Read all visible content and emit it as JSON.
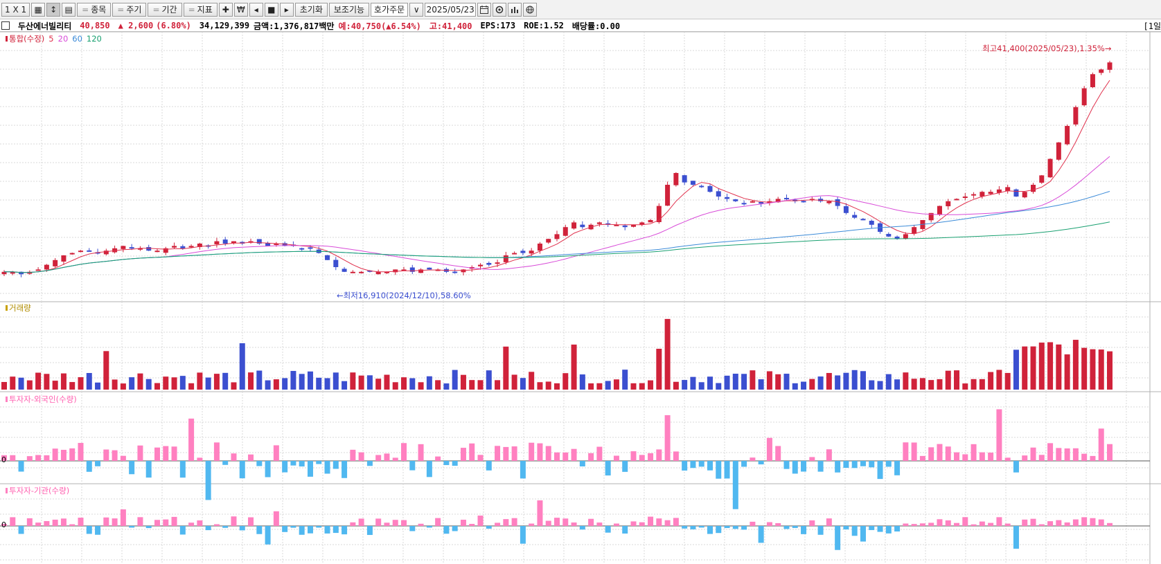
{
  "toolbar": {
    "layout_label": "1 X 1",
    "grid_label": "▦",
    "layout2_label": "↕",
    "layout3_label": "▤",
    "item_label": "종목",
    "cycle_label": "주기",
    "period_label": "기간",
    "indicator_label": "지표",
    "move_label": "✚",
    "won_label": "₩",
    "prev_label": "◂",
    "stop_label": "■",
    "next_label": "▸",
    "reset_label": "초기화",
    "aux_label": "보조기능",
    "order_label": "호가주문",
    "combo_arrow": "∨",
    "date_value": "2025/05/23",
    "calendar_icon": "calendar-icon",
    "settings_icon": "gear-icon"
  },
  "info": {
    "stock_name": "두산에너빌리티",
    "price": "40,850",
    "change": "▲ 2,600",
    "change_pct": "(6.80%)",
    "volume": "34,129,399",
    "amount": "금액:1,376,817백만",
    "expected": "예:40,750(▲6.54%)",
    "high": "고:41,400",
    "eps": "EPS:173",
    "roe": "ROE:1.52",
    "dividend": "배당률:0.00",
    "right_cut": "[1일"
  },
  "panes": {
    "price_title": "통합(수정)",
    "ma_labels": [
      "5",
      "20",
      "60",
      "120"
    ],
    "ma_colors": [
      "#e0304c",
      "#d84ad8",
      "#3a8ad8",
      "#18a070"
    ],
    "high_annotation": "최고41,400(2025/05/23),1.35%→",
    "low_annotation": "←최저16,910(2024/12/10),58.60%",
    "volume_title": "거래량",
    "foreign_title": "투자자-외국인(수량)",
    "inst_title": "투자자-기관(수량)",
    "zero_label": "0"
  },
  "colors": {
    "up": "#d0223a",
    "down": "#3b4fd0",
    "pos": "#ff80c0",
    "neg": "#50b8f0"
  },
  "chart_data": {
    "type": "candlestick",
    "period": "daily",
    "high": 41400,
    "low": 16910,
    "series": [
      {
        "name": "price_close_relative",
        "values": [
          0.08,
          0.08,
          0.07,
          0.08,
          0.09,
          0.11,
          0.13,
          0.15,
          0.16,
          0.17,
          0.17,
          0.16,
          0.17,
          0.18,
          0.19,
          0.18,
          0.18,
          0.17,
          0.17,
          0.18,
          0.19,
          0.18,
          0.19,
          0.2,
          0.19,
          0.21,
          0.2,
          0.21,
          0.2,
          0.21,
          0.2,
          0.19,
          0.2,
          0.19,
          0.19,
          0.18,
          0.18,
          0.16,
          0.13,
          0.1,
          0.08,
          0.08,
          0.08,
          0.08,
          0.08,
          0.08,
          0.09,
          0.09,
          0.08,
          0.09,
          0.09,
          0.09,
          0.08,
          0.08,
          0.09,
          0.1,
          0.11,
          0.11,
          0.12,
          0.15,
          0.16,
          0.16,
          0.17,
          0.2,
          0.22,
          0.24,
          0.27,
          0.29,
          0.27,
          0.28,
          0.29,
          0.28,
          0.28,
          0.27,
          0.28,
          0.29,
          0.3,
          0.36,
          0.45,
          0.5,
          0.46,
          0.45,
          0.44,
          0.42,
          0.4,
          0.39,
          0.38,
          0.37,
          0.38,
          0.37,
          0.38,
          0.39,
          0.39,
          0.38,
          0.38,
          0.39,
          0.38,
          0.38,
          0.36,
          0.33,
          0.31,
          0.3,
          0.28,
          0.25,
          0.23,
          0.22,
          0.24,
          0.27,
          0.3,
          0.33,
          0.36,
          0.38,
          0.39,
          0.4,
          0.41,
          0.42,
          0.42,
          0.43,
          0.44,
          0.4,
          0.42,
          0.45,
          0.49,
          0.56,
          0.63,
          0.7,
          0.78,
          0.86,
          0.92,
          0.94,
          0.97
        ]
      }
    ]
  }
}
